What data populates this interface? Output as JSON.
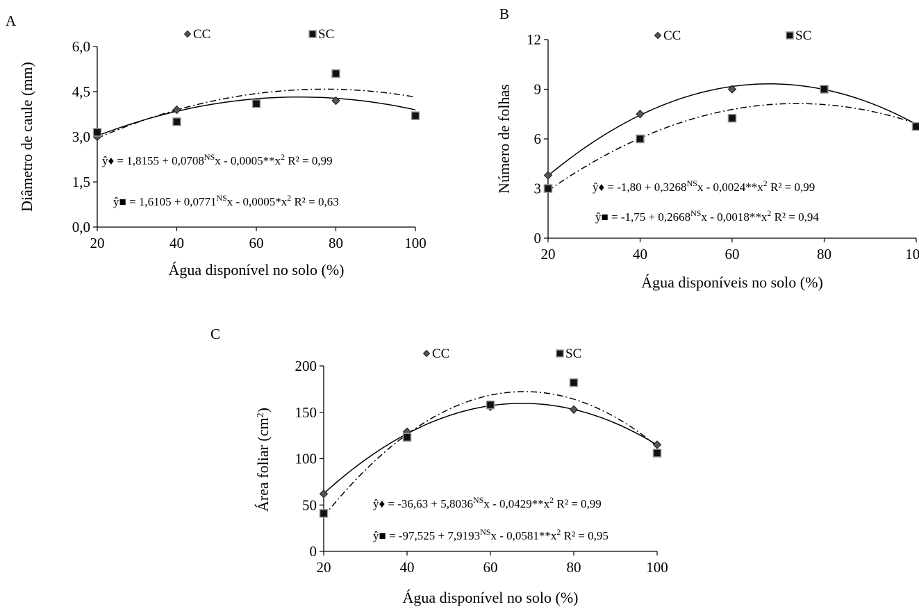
{
  "figure": {
    "background": "#ffffff"
  },
  "chart_data": [
    {
      "type": "scatter",
      "panel": "A",
      "xlabel": "Água disponível  no solo (%)",
      "ylabel": "Diâmetro de caule (mm)",
      "xlim": [
        20,
        100
      ],
      "ylim": [
        0,
        6
      ],
      "xticks": [
        20,
        40,
        60,
        80,
        100
      ],
      "yticks": [
        0,
        1.5,
        3,
        4.5,
        6
      ],
      "xtick_labels": [
        "20",
        "40",
        "60",
        "80",
        "100"
      ],
      "ytick_labels": [
        "0,0",
        "1,5",
        "3,0",
        "4,5",
        "6,0"
      ],
      "grid": false,
      "legend_position": "top",
      "x": [
        20,
        40,
        60,
        80,
        100
      ],
      "series": [
        {
          "name": "CC",
          "marker": "diamond",
          "line": "solid",
          "values": [
            3.0,
            3.9,
            4.15,
            4.2,
            3.7
          ],
          "fit": [
            1.8155,
            0.0708,
            -0.0005
          ],
          "equation": {
            "lead": "ŷ♦ = 1,8155 + 0,0708",
            "sup1": "NS",
            "mid": "x - 0,0005**x",
            "sup2": "2",
            "tail": " R² = 0,99"
          }
        },
        {
          "name": "SC",
          "marker": "square",
          "line": "dashdot",
          "values": [
            3.15,
            3.5,
            4.1,
            5.1,
            3.7
          ],
          "fit": [
            1.6105,
            0.0771,
            -0.0005
          ],
          "equation": {
            "lead": "ŷ■ = 1,6105 + 0,0771",
            "sup1": "NS",
            "mid": "x - 0,0005*x",
            "sup2": "2",
            "tail": " R² = 0,63"
          }
        }
      ]
    },
    {
      "type": "scatter",
      "panel": "B",
      "xlabel": "Água disponíveis no solo (%)",
      "ylabel": "Número de folhas",
      "xlim": [
        20,
        100
      ],
      "ylim": [
        0,
        12
      ],
      "xticks": [
        20,
        40,
        60,
        80,
        100
      ],
      "yticks": [
        0,
        3,
        6,
        9,
        12
      ],
      "xtick_labels": [
        "20",
        "40",
        "60",
        "80",
        "100"
      ],
      "ytick_labels": [
        "0",
        "3",
        "6",
        "9",
        "12"
      ],
      "grid": false,
      "legend_position": "top",
      "x": [
        20,
        40,
        60,
        80,
        100
      ],
      "series": [
        {
          "name": "CC",
          "marker": "diamond",
          "line": "solid",
          "values": [
            3.8,
            7.5,
            9.0,
            9.0,
            6.75
          ],
          "fit": [
            -1.8,
            0.3268,
            -0.0024
          ],
          "equation": {
            "lead": "ŷ♦ = -1,80 + 0,3268",
            "sup1": "NS",
            "mid": "x - 0,0024**x",
            "sup2": "2",
            "tail": "  R² = 0,99"
          }
        },
        {
          "name": "SC",
          "marker": "square",
          "line": "dashdot",
          "values": [
            3.0,
            6.0,
            7.25,
            9.0,
            6.75
          ],
          "fit": [
            -1.75,
            0.2668,
            -0.0018
          ],
          "equation": {
            "lead": "ŷ■ = -1,75 + 0,2668",
            "sup1": "NS",
            "mid": "x - 0,0018**x",
            "sup2": "2",
            "tail": " R² = 0,94"
          }
        }
      ]
    },
    {
      "type": "scatter",
      "panel": "C",
      "xlabel": "Água disponível no solo (%)",
      "ylabel": "Área foliar (cm",
      "ylabel_sup": "2",
      "ylabel_end": ")",
      "xlim": [
        20,
        100
      ],
      "ylim": [
        0,
        200
      ],
      "xticks": [
        20,
        40,
        60,
        80,
        100
      ],
      "yticks": [
        0,
        50,
        100,
        150,
        200
      ],
      "xtick_labels": [
        "20",
        "40",
        "60",
        "80",
        "100"
      ],
      "ytick_labels": [
        "0",
        "50",
        "100",
        "150",
        "200"
      ],
      "grid": false,
      "legend_position": "top",
      "x": [
        20,
        40,
        60,
        80,
        100
      ],
      "series": [
        {
          "name": "CC",
          "marker": "diamond",
          "line": "solid",
          "values": [
            62,
            129,
            156,
            153,
            115
          ],
          "fit": [
            -36.63,
            5.8036,
            -0.0429
          ],
          "equation": {
            "lead": "ŷ♦ = -36,63 + 5,8036",
            "sup1": "NS",
            "mid": "x - 0,0429**x",
            "sup2": "2",
            "tail": " R² = 0,99"
          }
        },
        {
          "name": "SC",
          "marker": "square",
          "line": "dashdot",
          "values": [
            41,
            123,
            158,
            182,
            106
          ],
          "fit": [
            -97.525,
            7.9193,
            -0.0581
          ],
          "equation": {
            "lead": "ŷ■ = -97,525 + 7,9193",
            "sup1": "NS",
            "mid": "x - 0,0581**x",
            "sup2": "2",
            "tail": " R² = 0,95"
          }
        }
      ]
    }
  ]
}
